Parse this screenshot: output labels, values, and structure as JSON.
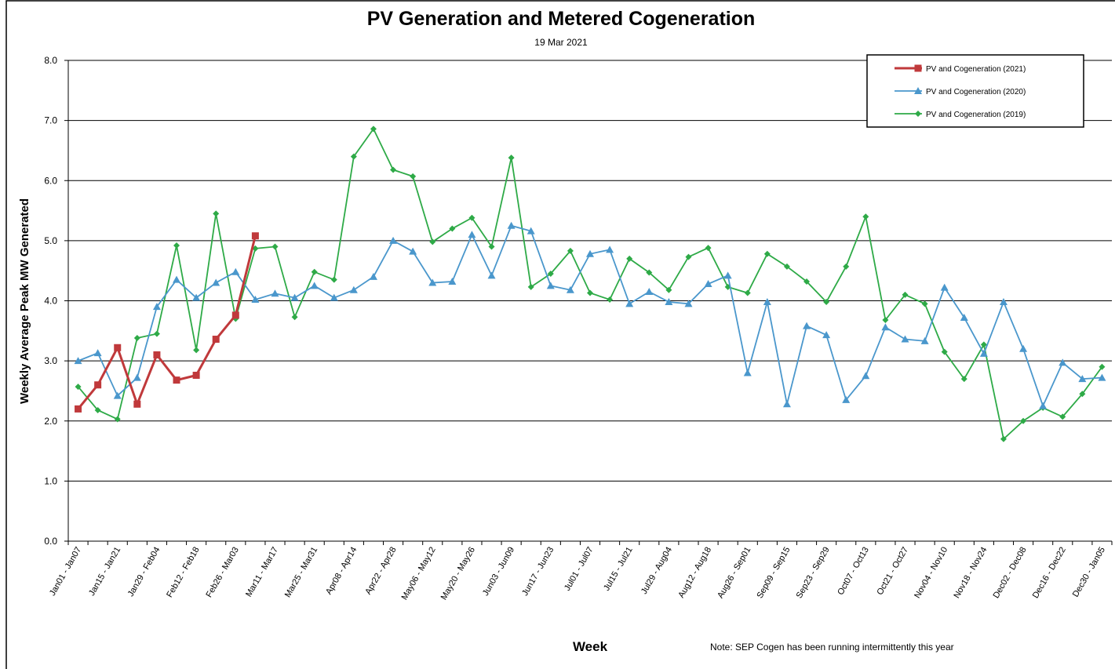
{
  "chart_data": {
    "type": "line",
    "title": "PV Generation and Metered Cogeneration",
    "subtitle": "19 Mar 2021",
    "y_label": "Weekly Average Peak MW Generated",
    "x_label": "Week",
    "note": "Note:  SEP Cogen has been running intermittently this year",
    "categories": [
      "Jan01 - Jan07",
      null,
      "Jan15 - Jan21",
      null,
      "Jan29 - Feb04",
      null,
      "Feb12 - Feb18",
      null,
      "Feb26 - Mar03",
      null,
      "Mar11 - Mar17",
      null,
      "Mar25 - Mar31",
      null,
      "Apr08 - Apr14",
      null,
      "Apr22 - Apr28",
      null,
      "May06 - May12",
      null,
      "May20 - May26",
      null,
      "Jun03 - Jun09",
      null,
      "Jun17 - Jun23",
      null,
      "Jul01 - Jul07",
      null,
      "Jul15 - Jul21",
      null,
      "Jul29 - Aug04",
      null,
      "Aug12 - Aug18",
      null,
      "Aug26 - Sep01",
      null,
      "Sep09 - Sep15",
      null,
      "Sep23 - Sep29",
      null,
      "Oct07 - Oct13",
      null,
      "Oct21 - Oct27",
      null,
      "Nov04 - Nov10",
      null,
      "Nov18 - Nov24",
      null,
      "Dec02 - Dec08",
      null,
      "Dec16 - Dec22",
      null,
      "Dec30 - Jan05"
    ],
    "ylim": [
      0,
      8
    ],
    "yticks": [
      {
        "value": 0,
        "label": "0.0"
      },
      {
        "value": 1,
        "label": "1.0"
      },
      {
        "value": 2,
        "label": "2.0"
      },
      {
        "value": 3,
        "label": "3.0"
      },
      {
        "value": 4,
        "label": "4.0"
      },
      {
        "value": 5,
        "label": "5.0"
      },
      {
        "value": 6,
        "label": "6.0"
      },
      {
        "value": 7,
        "label": "7.0"
      },
      {
        "value": 8,
        "label": "8.0"
      }
    ],
    "grid": true,
    "legend": "top-right",
    "series": [
      {
        "name": "PV and Cogeneration (2021)",
        "color": "#c0393b",
        "marker": "square",
        "values": [
          2.2,
          2.6,
          3.22,
          2.28,
          3.1,
          2.68,
          2.76,
          3.36,
          3.76,
          5.08,
          null,
          null,
          null,
          null,
          null,
          null,
          null,
          null,
          null,
          null,
          null,
          null,
          null,
          null,
          null,
          null,
          null,
          null,
          null,
          null,
          null,
          null,
          null,
          null,
          null,
          null,
          null,
          null,
          null,
          null,
          null,
          null,
          null,
          null,
          null,
          null,
          null,
          null,
          null,
          null,
          null,
          null,
          null
        ]
      },
      {
        "name": "PV and Cogeneration (2020)",
        "color": "#4a97cc",
        "marker": "triangle",
        "values": [
          3.0,
          3.13,
          2.42,
          2.72,
          3.9,
          4.35,
          4.05,
          4.3,
          4.48,
          4.02,
          4.12,
          4.05,
          4.25,
          4.05,
          4.18,
          4.4,
          5.0,
          4.82,
          4.3,
          4.32,
          5.1,
          4.42,
          5.25,
          5.16,
          4.25,
          4.18,
          4.78,
          4.85,
          3.95,
          4.15,
          3.98,
          3.95,
          4.28,
          4.42,
          2.8,
          3.98,
          2.28,
          3.58,
          3.43,
          2.35,
          2.75,
          3.56,
          3.36,
          3.33,
          4.22,
          3.72,
          3.12,
          3.98,
          3.2,
          2.25,
          2.97,
          2.7,
          2.72
        ]
      },
      {
        "name": "PV and Cogeneration (2019)",
        "color": "#2eaa47",
        "marker": "diamond",
        "values": [
          2.57,
          2.18,
          2.03,
          3.38,
          3.45,
          4.92,
          3.18,
          5.45,
          3.7,
          4.87,
          4.9,
          3.73,
          4.48,
          4.35,
          6.4,
          6.86,
          6.18,
          6.07,
          4.98,
          5.2,
          5.38,
          4.9,
          6.38,
          4.23,
          4.45,
          4.83,
          4.13,
          4.02,
          4.7,
          4.47,
          4.18,
          4.73,
          4.88,
          4.23,
          4.13,
          4.78,
          4.57,
          4.32,
          3.98,
          4.57,
          5.4,
          3.68,
          4.1,
          3.95,
          3.15,
          2.7,
          3.27,
          1.7,
          2.0,
          2.22,
          2.07,
          2.45,
          2.9
        ]
      }
    ]
  }
}
